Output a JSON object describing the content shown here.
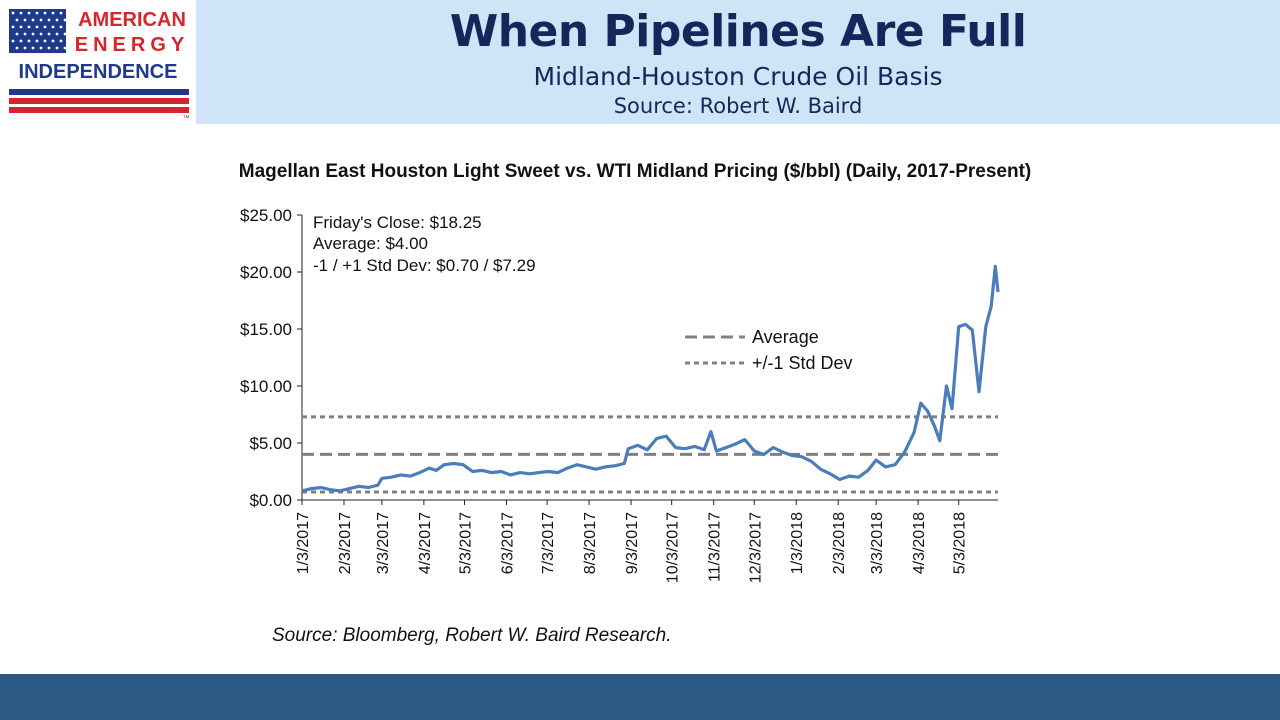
{
  "logo": {
    "line1": "AMERICAN",
    "line2": "ENERGY",
    "line3": "INDEPENDENCE",
    "tm": "™",
    "colors": {
      "blue": "#1f3a8a",
      "red": "#d6262b"
    }
  },
  "header": {
    "title": "When Pipelines Are Full",
    "subtitle": "Midland-Houston Crude Oil Basis",
    "source": "Source: Robert W. Baird"
  },
  "chart_source": "Source: Bloomberg, Robert W. Baird Research.",
  "colors": {
    "header_band": "#cfe5f7",
    "title_text": "#13285a",
    "footer": "#2b5a86",
    "series": "#4a7dbb",
    "ref_lines": "#808080"
  },
  "chart_data": {
    "type": "line",
    "title": "Magellan East Houston Light Sweet vs. WTI Midland Pricing ($/bbl) (Daily, 2017-Present)",
    "annotations": [
      "Friday's Close:  $18.25",
      "Average:  $4.00",
      "-1 / +1 Std Dev:  $0.70 / $7.29"
    ],
    "legend": {
      "placement": "center-right",
      "average_label": "Average",
      "std_label": "+/-1 Std Dev"
    },
    "ylim": [
      0,
      25
    ],
    "y_ticks": [
      0,
      5,
      10,
      15,
      20,
      25
    ],
    "y_tick_labels": [
      "$0.00",
      "$5.00",
      "$10.00",
      "$15.00",
      "$20.00",
      "$25.00"
    ],
    "x_tick_labels": [
      "1/3/2017",
      "2/3/2017",
      "3/3/2017",
      "4/3/2017",
      "5/3/2017",
      "6/3/2017",
      "7/3/2017",
      "8/3/2017",
      "9/3/2017",
      "10/3/2017",
      "11/3/2017",
      "12/3/2017",
      "1/3/2018",
      "2/3/2018",
      "3/3/2018",
      "4/3/2018",
      "5/3/2018"
    ],
    "x_range": [
      "2017-01-03",
      "2018-06-01"
    ],
    "reference_lines": {
      "average": 4.0,
      "minus_1_std": 0.7,
      "plus_1_std": 7.29
    },
    "grid": false,
    "series": [
      {
        "points": [
          [
            "2017-01-03",
            0.8
          ],
          [
            "2017-01-10",
            1.0
          ],
          [
            "2017-01-17",
            1.1
          ],
          [
            "2017-01-24",
            0.9
          ],
          [
            "2017-01-31",
            0.8
          ],
          [
            "2017-02-07",
            1.0
          ],
          [
            "2017-02-14",
            1.2
          ],
          [
            "2017-02-21",
            1.1
          ],
          [
            "2017-02-28",
            1.3
          ],
          [
            "2017-03-03",
            1.9
          ],
          [
            "2017-03-10",
            2.0
          ],
          [
            "2017-03-17",
            2.2
          ],
          [
            "2017-03-24",
            2.1
          ],
          [
            "2017-03-31",
            2.4
          ],
          [
            "2017-04-07",
            2.8
          ],
          [
            "2017-04-12",
            2.6
          ],
          [
            "2017-04-18",
            3.1
          ],
          [
            "2017-04-25",
            3.2
          ],
          [
            "2017-05-02",
            3.1
          ],
          [
            "2017-05-09",
            2.5
          ],
          [
            "2017-05-16",
            2.6
          ],
          [
            "2017-05-23",
            2.4
          ],
          [
            "2017-05-30",
            2.5
          ],
          [
            "2017-06-06",
            2.2
          ],
          [
            "2017-06-13",
            2.4
          ],
          [
            "2017-06-20",
            2.3
          ],
          [
            "2017-06-27",
            2.4
          ],
          [
            "2017-07-04",
            2.5
          ],
          [
            "2017-07-11",
            2.4
          ],
          [
            "2017-07-18",
            2.8
          ],
          [
            "2017-07-25",
            3.1
          ],
          [
            "2017-08-01",
            2.9
          ],
          [
            "2017-08-08",
            2.7
          ],
          [
            "2017-08-15",
            2.9
          ],
          [
            "2017-08-22",
            3.0
          ],
          [
            "2017-08-29",
            3.2
          ],
          [
            "2017-09-01",
            4.5
          ],
          [
            "2017-09-08",
            4.8
          ],
          [
            "2017-09-15",
            4.4
          ],
          [
            "2017-09-22",
            5.4
          ],
          [
            "2017-09-29",
            5.6
          ],
          [
            "2017-10-06",
            4.6
          ],
          [
            "2017-10-13",
            4.5
          ],
          [
            "2017-10-20",
            4.7
          ],
          [
            "2017-10-27",
            4.4
          ],
          [
            "2017-11-01",
            6.0
          ],
          [
            "2017-11-05",
            4.3
          ],
          [
            "2017-11-12",
            4.6
          ],
          [
            "2017-11-19",
            4.9
          ],
          [
            "2017-11-26",
            5.3
          ],
          [
            "2017-12-03",
            4.3
          ],
          [
            "2017-12-10",
            4.0
          ],
          [
            "2017-12-17",
            4.6
          ],
          [
            "2017-12-24",
            4.2
          ],
          [
            "2017-12-31",
            3.9
          ],
          [
            "2018-01-07",
            3.8
          ],
          [
            "2018-01-14",
            3.4
          ],
          [
            "2018-01-21",
            2.7
          ],
          [
            "2018-01-28",
            2.3
          ],
          [
            "2018-02-04",
            1.8
          ],
          [
            "2018-02-11",
            2.1
          ],
          [
            "2018-02-18",
            2.0
          ],
          [
            "2018-02-25",
            2.6
          ],
          [
            "2018-03-03",
            3.5
          ],
          [
            "2018-03-10",
            2.9
          ],
          [
            "2018-03-17",
            3.1
          ],
          [
            "2018-03-24",
            4.2
          ],
          [
            "2018-03-31",
            5.9
          ],
          [
            "2018-04-05",
            8.5
          ],
          [
            "2018-04-10",
            7.8
          ],
          [
            "2018-04-15",
            6.5
          ],
          [
            "2018-04-19",
            5.2
          ],
          [
            "2018-04-24",
            10.0
          ],
          [
            "2018-04-28",
            8.0
          ],
          [
            "2018-05-03",
            15.2
          ],
          [
            "2018-05-08",
            15.4
          ],
          [
            "2018-05-13",
            14.9
          ],
          [
            "2018-05-18",
            9.5
          ],
          [
            "2018-05-23",
            15.2
          ],
          [
            "2018-05-27",
            17.0
          ],
          [
            "2018-05-30",
            20.5
          ],
          [
            "2018-06-01",
            18.25
          ]
        ]
      }
    ]
  }
}
